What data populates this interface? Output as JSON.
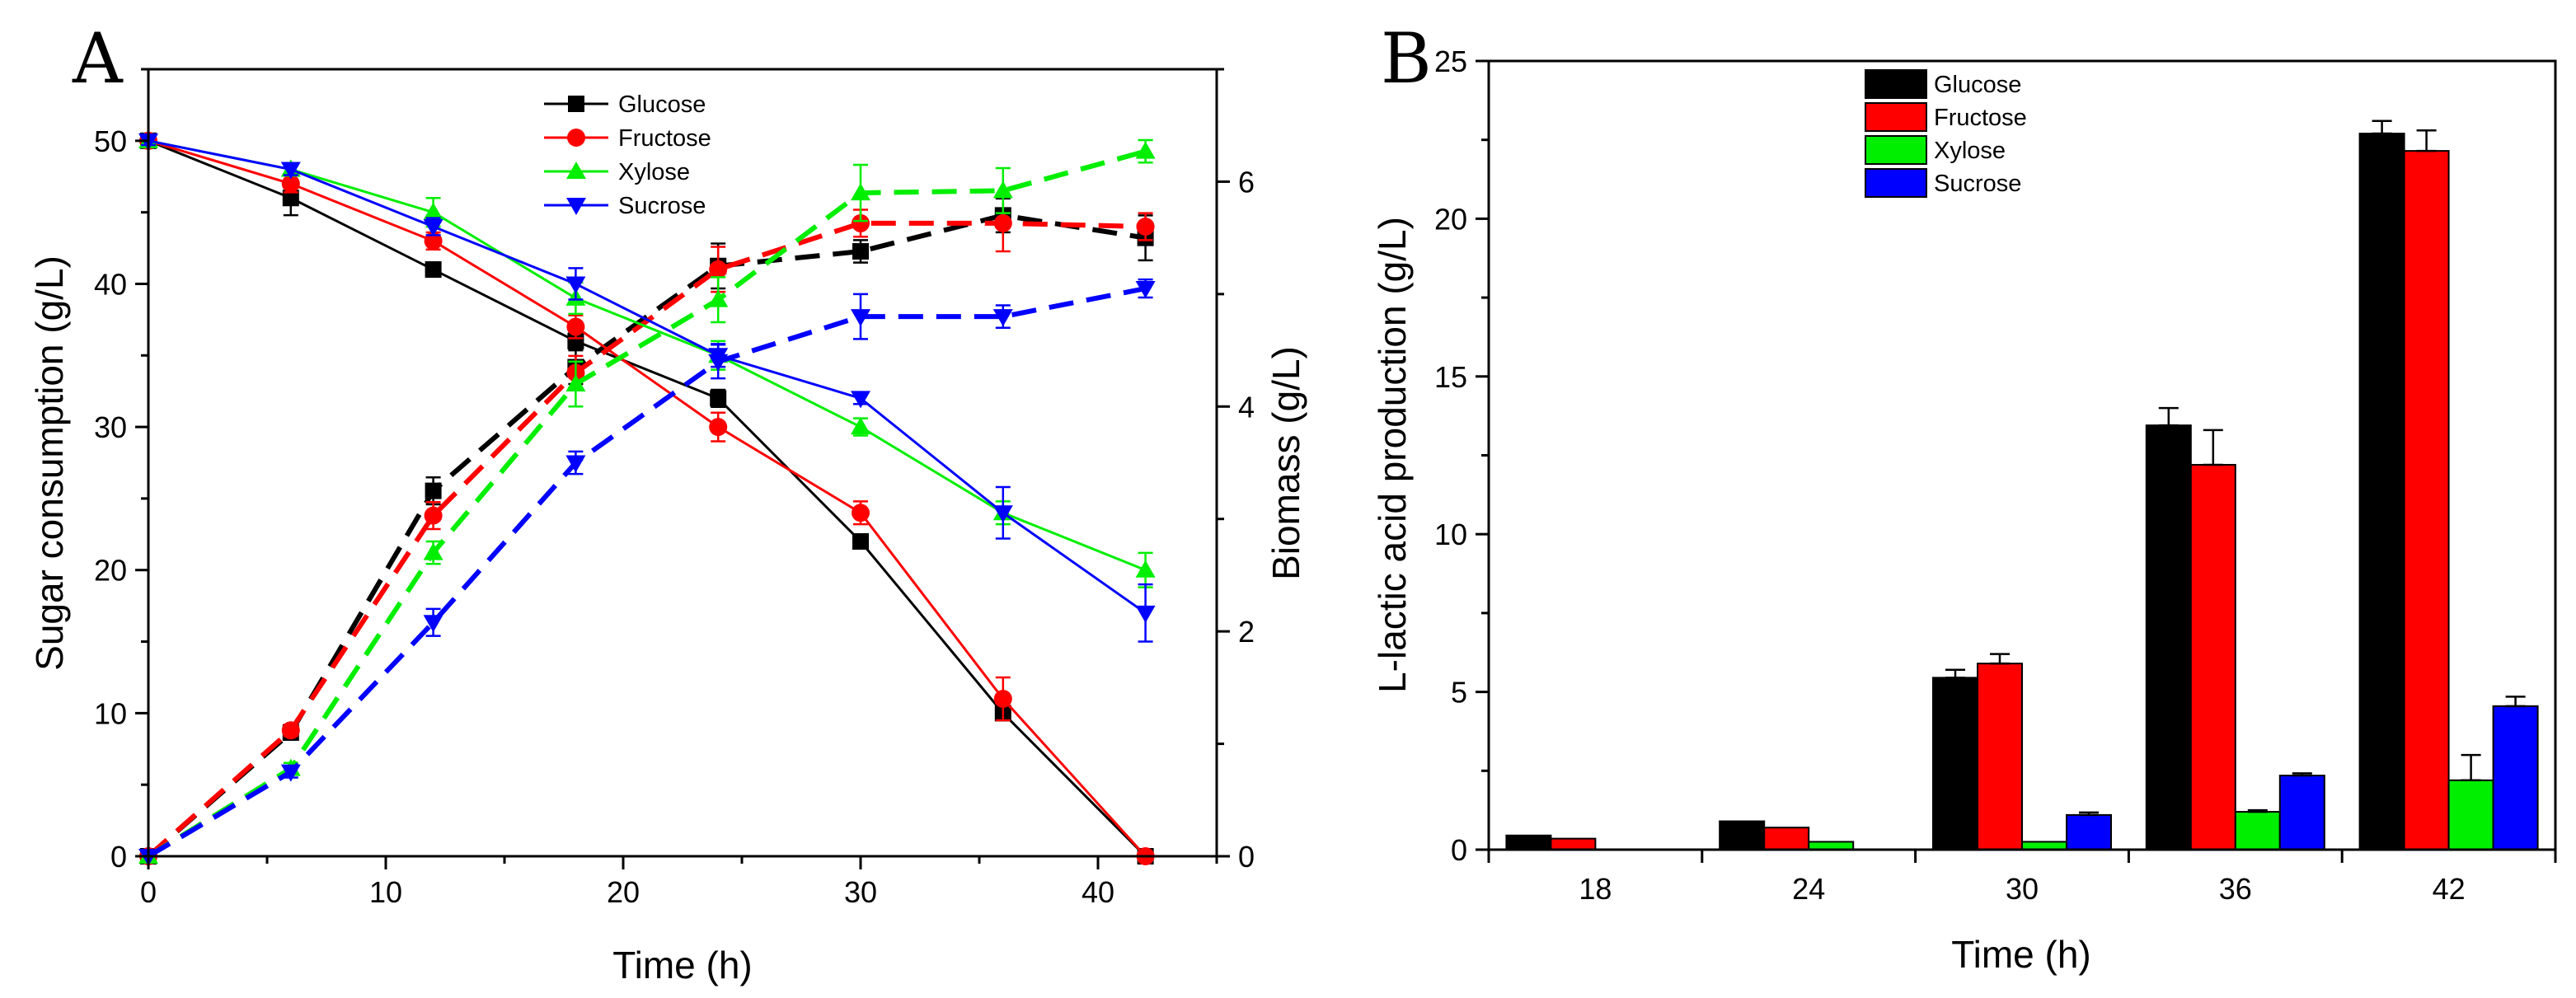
{
  "chart_data": [
    {
      "panel": "A",
      "type": "line",
      "xlabel": "Time (h)",
      "ylabel": "Sugar consumption (g/L)",
      "y2label": "Biomass (g/L)",
      "xlim": [
        0,
        45
      ],
      "ylim": [
        0,
        55
      ],
      "y2lim": [
        0,
        7
      ],
      "xticks": [
        0,
        10,
        20,
        30,
        40
      ],
      "yticks": [
        0,
        10,
        20,
        30,
        40,
        50
      ],
      "y2ticks": [
        0,
        2,
        4,
        6
      ],
      "legend": {
        "position": "top-center",
        "entries": [
          "Glucose",
          "Fructose",
          "Xylose",
          "Sucrose"
        ]
      },
      "x": [
        0,
        6,
        12,
        18,
        24,
        30,
        36,
        42
      ],
      "series": [
        {
          "name": "Glucose",
          "color": "#000000",
          "marker": "square",
          "consumption": [
            50,
            46,
            41,
            36,
            32,
            22,
            10,
            0
          ],
          "consumption_err": [
            0.3,
            1.2,
            0.5,
            0.6,
            0.6,
            0.3,
            0.5,
            0.2
          ],
          "biomass": [
            0,
            1.1,
            3.25,
            4.35,
            5.25,
            5.38,
            5.7,
            5.5
          ],
          "biomass_err": [
            0,
            0.05,
            0.12,
            0.15,
            0.2,
            0.1,
            0.15,
            0.2
          ]
        },
        {
          "name": "Fructose",
          "color": "#ff0000",
          "marker": "circle",
          "consumption": [
            50,
            47,
            43,
            37,
            30,
            24,
            11,
            0
          ],
          "consumption_err": [
            0.3,
            0.6,
            0.6,
            0.8,
            1.0,
            0.8,
            1.5,
            0.2
          ],
          "biomass": [
            0,
            1.12,
            3.03,
            4.3,
            5.22,
            5.63,
            5.63,
            5.6
          ],
          "biomass_err": [
            0,
            0.05,
            0.12,
            0.15,
            0.2,
            0.12,
            0.25,
            0.12
          ]
        },
        {
          "name": "Xylose",
          "color": "#00ee00",
          "marker": "triangle-up",
          "consumption": [
            50,
            48,
            45,
            39,
            35,
            30,
            24,
            20
          ],
          "consumption_err": [
            0.3,
            0.4,
            1.0,
            1.1,
            1.0,
            0.6,
            0.8,
            1.2
          ],
          "biomass": [
            0,
            0.78,
            2.7,
            4.2,
            4.95,
            5.9,
            5.92,
            6.27
          ],
          "biomass_err": [
            0,
            0.05,
            0.1,
            0.2,
            0.2,
            0.25,
            0.2,
            0.1
          ]
        },
        {
          "name": "Sucrose",
          "color": "#0000ff",
          "marker": "triangle-down",
          "consumption": [
            50,
            48,
            44,
            40,
            35,
            32,
            24,
            17
          ],
          "consumption_err": [
            0.3,
            0.4,
            0.6,
            1.1,
            0.8,
            0.4,
            1.8,
            2.0
          ],
          "biomass": [
            0,
            0.75,
            2.08,
            3.5,
            4.4,
            4.8,
            4.8,
            5.05
          ],
          "biomass_err": [
            0,
            0.05,
            0.12,
            0.1,
            0.15,
            0.2,
            0.1,
            0.08
          ]
        }
      ]
    },
    {
      "panel": "B",
      "type": "bar",
      "xlabel": "Time (h)",
      "ylabel": "L-lactic acid production (g/L)",
      "ylim": [
        0,
        25
      ],
      "yticks": [
        0,
        5,
        10,
        15,
        20,
        25
      ],
      "categories": [
        "18",
        "24",
        "30",
        "36",
        "42"
      ],
      "legend": {
        "position": "top-left",
        "entries": [
          "Glucose",
          "Fructose",
          "Xylose",
          "Sucrose"
        ]
      },
      "series": [
        {
          "name": "Glucose",
          "color": "#000000",
          "values": [
            0.45,
            0.9,
            5.45,
            13.45,
            22.7
          ],
          "err": [
            0,
            0,
            0.25,
            0.55,
            0.4
          ]
        },
        {
          "name": "Fructose",
          "color": "#ff0000",
          "values": [
            0.35,
            0.7,
            5.9,
            12.2,
            22.15
          ],
          "err": [
            0,
            0,
            0.3,
            1.1,
            0.65
          ]
        },
        {
          "name": "Xylose",
          "color": "#00ee00",
          "values": [
            0,
            0.25,
            0.25,
            1.2,
            2.2
          ],
          "err": [
            0,
            0,
            0,
            0.05,
            0.8
          ]
        },
        {
          "name": "Sucrose",
          "color": "#0000ff",
          "values": [
            0,
            0,
            1.1,
            2.35,
            4.55
          ],
          "err": [
            0,
            0,
            0.08,
            0.07,
            0.3
          ]
        }
      ]
    }
  ]
}
